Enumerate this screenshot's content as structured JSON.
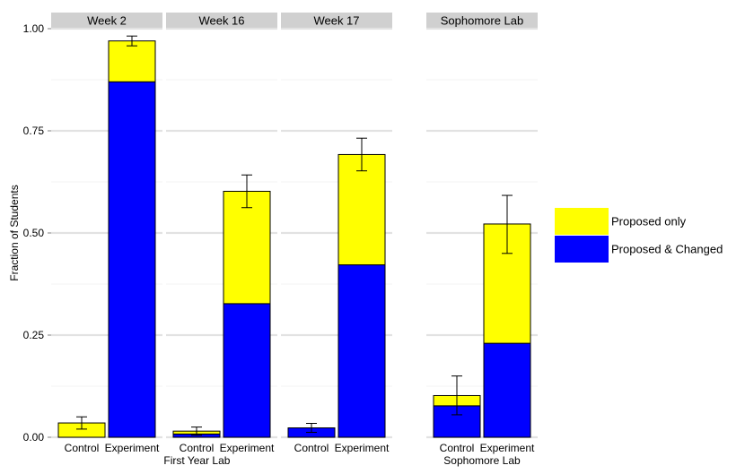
{
  "chart_data": {
    "type": "bar",
    "stacked": true,
    "ylabel": "Fraction of Students",
    "ylim": [
      0,
      1.0
    ],
    "y_ticks": [
      "0.00",
      "0.25",
      "0.50",
      "0.75",
      "1.00"
    ],
    "y_tick_values": [
      0,
      0.25,
      0.5,
      0.75,
      1.0
    ],
    "grid": true,
    "legend_position": "right",
    "colors": {
      "proposed_only": "#ffff00",
      "proposed_changed": "#0000ff"
    },
    "legend": [
      {
        "key": "proposed_only",
        "label": "Proposed only"
      },
      {
        "key": "proposed_changed",
        "label": "Proposed & Changed"
      }
    ],
    "group_labels": [
      {
        "text": "First Year Lab",
        "panels": [
          0,
          1,
          2
        ]
      },
      {
        "text": "Sophomore Lab",
        "panels": [
          3
        ]
      }
    ],
    "panels": [
      {
        "title": "Week 2",
        "categories": [
          "Control",
          "Experiment"
        ],
        "proposed_changed": [
          0.0,
          0.87
        ],
        "proposed_only": [
          0.035,
          0.1
        ],
        "total": [
          0.035,
          0.97
        ],
        "error_low": [
          0.02,
          0.958
        ],
        "error_high": [
          0.05,
          0.982
        ]
      },
      {
        "title": "Week 16",
        "categories": [
          "Control",
          "Experiment"
        ],
        "proposed_changed": [
          0.008,
          0.327
        ],
        "proposed_only": [
          0.007,
          0.275
        ],
        "total": [
          0.015,
          0.602
        ],
        "error_low": [
          0.005,
          0.562
        ],
        "error_high": [
          0.025,
          0.642
        ]
      },
      {
        "title": "Week 17",
        "categories": [
          "Control",
          "Experiment"
        ],
        "proposed_changed": [
          0.023,
          0.422
        ],
        "proposed_only": [
          0.0,
          0.27
        ],
        "total": [
          0.023,
          0.692
        ],
        "error_low": [
          0.012,
          0.652
        ],
        "error_high": [
          0.034,
          0.732
        ]
      },
      {
        "title": "Sophomore Lab",
        "categories": [
          "Control",
          "Experiment"
        ],
        "proposed_changed": [
          0.077,
          0.23
        ],
        "proposed_only": [
          0.025,
          0.292
        ],
        "total": [
          0.102,
          0.522
        ],
        "error_low": [
          0.055,
          0.45
        ],
        "error_high": [
          0.15,
          0.592
        ]
      }
    ]
  }
}
